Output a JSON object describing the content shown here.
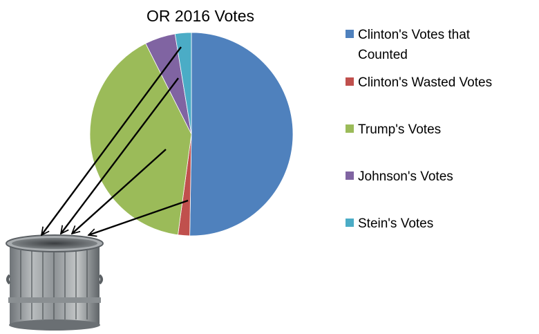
{
  "chart_data": {
    "type": "pie",
    "title": "OR 2016 Votes",
    "legend_position": "right",
    "slices": [
      {
        "label": "Clinton's Votes that Counted",
        "label_lines": [
          "Clinton's Votes that",
          "Counted"
        ],
        "value": 48.6,
        "color": "#4F81BD"
      },
      {
        "label": "Clinton's Wasted Votes",
        "label_lines": [
          "Clinton's Wasted Votes"
        ],
        "value": 1.8,
        "color": "#C0504D"
      },
      {
        "label": "Trump's Votes",
        "label_lines": [
          "Trump's Votes"
        ],
        "value": 39.1,
        "color": "#9BBB59"
      },
      {
        "label": "Johnson's Votes",
        "label_lines": [
          "Johnson's Votes"
        ],
        "value": 4.7,
        "color": "#8064A2"
      },
      {
        "label": "Stein's Votes",
        "label_lines": [
          "Stein's Votes"
        ],
        "value": 2.5,
        "color": "#4BACC6"
      }
    ]
  }
}
